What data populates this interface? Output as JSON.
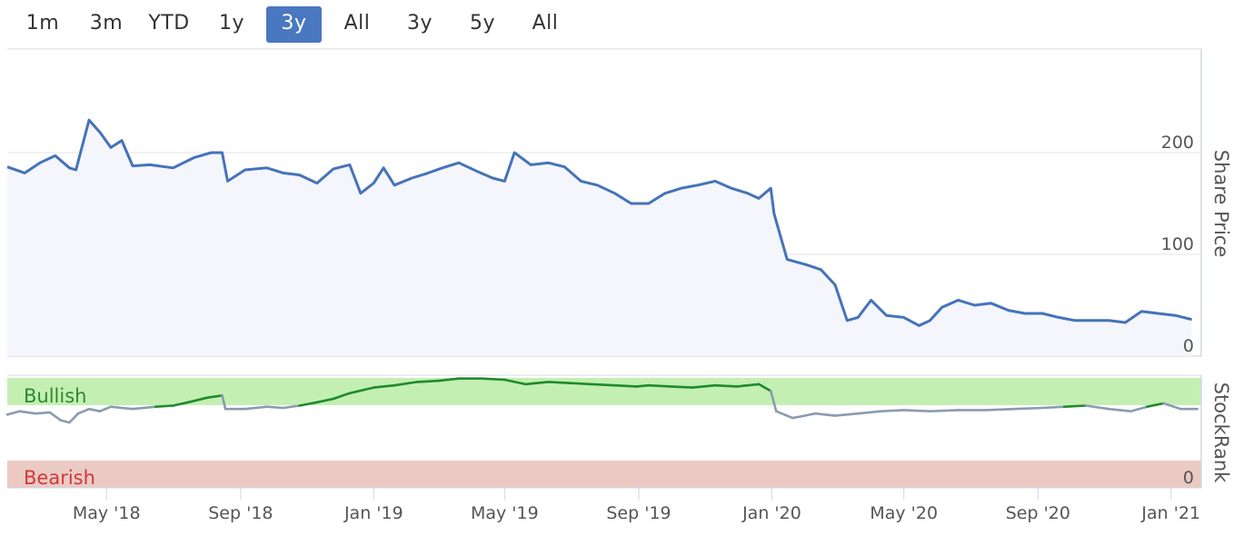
{
  "range_selector": {
    "buttons": [
      {
        "label": "1m",
        "active": false
      },
      {
        "label": "3m",
        "active": false
      },
      {
        "label": "YTD",
        "active": false
      },
      {
        "label": "1y",
        "active": false
      },
      {
        "label": "3y",
        "active": true
      },
      {
        "label": "All",
        "active": false
      },
      {
        "label": "3y",
        "active": false
      },
      {
        "label": "5y",
        "active": false
      },
      {
        "label": "All",
        "active": false
      }
    ]
  },
  "colors": {
    "price_line": "#4573b9",
    "price_fill": "#f4f6fb",
    "bullish_band": "#c4efb2",
    "bearish_band": "#eccac4",
    "rank_line": "#8a9bb0",
    "rank_bullish_line": "#1f8a2e",
    "bullish_text": "#2d8a30",
    "bearish_text": "#cc3b3b",
    "active_button": "#4a78c0"
  },
  "chart_data": [
    {
      "type": "line",
      "ylabel": "Share Price",
      "ylim": [
        0,
        290
      ],
      "yticks": [
        0,
        100,
        200
      ],
      "series": [
        {
          "x": [
            "2018-01-30",
            "2018-02-15",
            "2018-03-01",
            "2018-03-15",
            "2018-03-28",
            "2018-04-03",
            "2018-04-15",
            "2018-04-25",
            "2018-05-05",
            "2018-05-15",
            "2018-05-25",
            "2018-06-10",
            "2018-07-01",
            "2018-07-20",
            "2018-08-05",
            "2018-08-15",
            "2018-08-20",
            "2018-09-05",
            "2018-09-25",
            "2018-10-10",
            "2018-10-25",
            "2018-11-10",
            "2018-11-25",
            "2018-12-10",
            "2018-12-20",
            "2019-01-01",
            "2019-01-10",
            "2019-01-20",
            "2019-02-05",
            "2019-02-20",
            "2019-03-05",
            "2019-03-20",
            "2019-04-05",
            "2019-04-20",
            "2019-05-01",
            "2019-05-10",
            "2019-05-25",
            "2019-06-10",
            "2019-06-25",
            "2019-07-10",
            "2019-07-25",
            "2019-08-10",
            "2019-08-25",
            "2019-09-10",
            "2019-09-25",
            "2019-10-10",
            "2019-10-25",
            "2019-11-10",
            "2019-11-25",
            "2019-12-10",
            "2019-12-20",
            "2019-12-31",
            "2020-01-03",
            "2020-01-15",
            "2020-02-01",
            "2020-02-15",
            "2020-02-28",
            "2020-03-10",
            "2020-03-20",
            "2020-04-01",
            "2020-04-15",
            "2020-05-01",
            "2020-05-15",
            "2020-05-25",
            "2020-06-05",
            "2020-06-20",
            "2020-07-05",
            "2020-07-20",
            "2020-08-05",
            "2020-08-20",
            "2020-09-05",
            "2020-09-20",
            "2020-10-05",
            "2020-10-20",
            "2020-11-05",
            "2020-11-20",
            "2020-12-05",
            "2020-12-20",
            "2021-01-05",
            "2021-01-20"
          ],
          "y": [
            186,
            180,
            190,
            197,
            185,
            183,
            232,
            220,
            205,
            212,
            187,
            188,
            185,
            195,
            200,
            200,
            172,
            183,
            185,
            180,
            178,
            170,
            184,
            188,
            160,
            170,
            185,
            168,
            175,
            180,
            185,
            190,
            182,
            175,
            172,
            200,
            188,
            190,
            186,
            172,
            168,
            160,
            150,
            150,
            160,
            165,
            168,
            172,
            165,
            160,
            155,
            165,
            140,
            95,
            90,
            85,
            70,
            35,
            38,
            55,
            40,
            38,
            30,
            35,
            48,
            55,
            50,
            52,
            45,
            42,
            42,
            38,
            35,
            35,
            35,
            33,
            44,
            42,
            40,
            36
          ]
        }
      ]
    },
    {
      "type": "line",
      "ylabel": "StockRank",
      "ylim": [
        0,
        100
      ],
      "band_labels": {
        "top": "Bullish",
        "bottom": "Bearish"
      },
      "yticks": [
        0
      ],
      "series": [
        {
          "x": [
            "2018-01-30",
            "2018-02-10",
            "2018-02-25",
            "2018-03-10",
            "2018-03-20",
            "2018-03-28",
            "2018-04-05",
            "2018-04-15",
            "2018-04-25",
            "2018-05-05",
            "2018-05-15",
            "2018-05-25",
            "2018-06-15",
            "2018-07-01",
            "2018-07-15",
            "2018-08-01",
            "2018-08-15",
            "2018-08-18",
            "2018-09-05",
            "2018-09-25",
            "2018-10-10",
            "2018-10-25",
            "2018-11-10",
            "2018-11-25",
            "2018-12-10",
            "2019-01-01",
            "2019-01-20",
            "2019-02-10",
            "2019-03-01",
            "2019-03-20",
            "2019-04-10",
            "2019-05-01",
            "2019-05-20",
            "2019-06-10",
            "2019-06-30",
            "2019-07-20",
            "2019-08-10",
            "2019-08-30",
            "2019-09-10",
            "2019-09-30",
            "2019-10-20",
            "2019-11-10",
            "2019-11-30",
            "2019-12-20",
            "2019-12-31",
            "2020-01-05",
            "2020-01-20",
            "2020-02-10",
            "2020-02-28",
            "2020-03-20",
            "2020-04-10",
            "2020-05-01",
            "2020-05-25",
            "2020-06-20",
            "2020-07-15",
            "2020-08-10",
            "2020-09-05",
            "2020-09-25",
            "2020-10-15",
            "2020-11-05",
            "2020-11-25",
            "2020-12-10",
            "2020-12-25",
            "2021-01-10",
            "2021-01-25"
          ],
          "y": [
            65,
            68,
            66,
            67,
            60,
            58,
            66,
            70,
            68,
            72,
            71,
            70,
            72,
            73,
            76,
            80,
            82,
            70,
            70,
            72,
            71,
            73,
            76,
            79,
            84,
            89,
            91,
            94,
            95,
            97,
            97,
            96,
            92,
            94,
            93,
            92,
            91,
            90,
            91,
            90,
            89,
            91,
            90,
            92,
            86,
            68,
            62,
            66,
            64,
            66,
            68,
            69,
            68,
            69,
            69,
            70,
            71,
            72,
            73,
            70,
            68,
            72,
            75,
            70,
            70
          ]
        }
      ]
    }
  ],
  "x_axis": {
    "ticks": [
      {
        "label": "May '18",
        "date": "2018-05-01"
      },
      {
        "label": "Sep '18",
        "date": "2018-09-01"
      },
      {
        "label": "Jan '19",
        "date": "2019-01-01"
      },
      {
        "label": "May '19",
        "date": "2019-05-01"
      },
      {
        "label": "Sep '19",
        "date": "2019-09-01"
      },
      {
        "label": "Jan '20",
        "date": "2020-01-01"
      },
      {
        "label": "May '20",
        "date": "2020-05-01"
      },
      {
        "label": "Sep '20",
        "date": "2020-09-01"
      },
      {
        "label": "Jan '21",
        "date": "2021-01-01"
      }
    ]
  }
}
